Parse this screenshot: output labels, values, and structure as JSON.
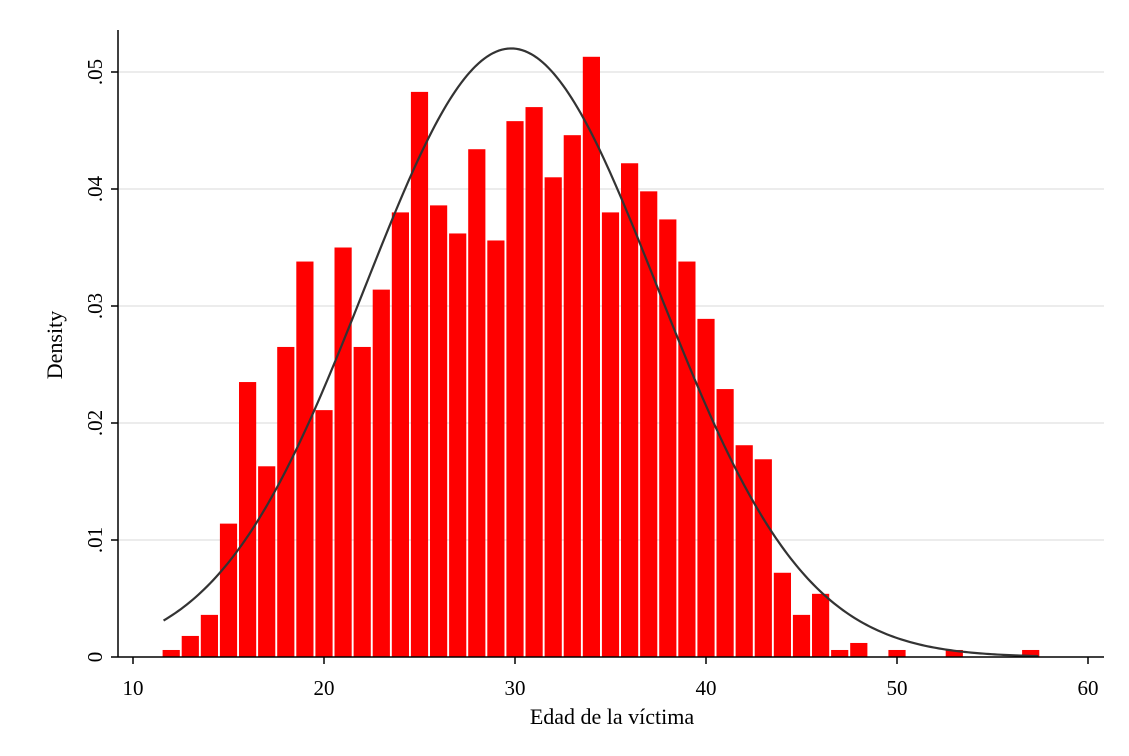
{
  "chart_data": {
    "type": "bar",
    "subtype": "histogram-with-normal-density-overlay",
    "xlabel": "Edad de la víctima",
    "ylabel": "Density",
    "xlim": [
      10,
      60
    ],
    "ylim": [
      0,
      0.053
    ],
    "xticks": [
      10,
      20,
      30,
      40,
      50,
      60
    ],
    "xtick_labels": [
      "10",
      "20",
      "30",
      "40",
      "50",
      "60"
    ],
    "yticks": [
      0,
      0.01,
      0.02,
      0.03,
      0.04,
      0.05
    ],
    "ytick_labels": [
      "0",
      ".01",
      ".02",
      ".03",
      ".04",
      ".05"
    ],
    "grid": "horizontal",
    "bar_color": "#ff0000",
    "curve_color": "#333333",
    "bin_width": 0.9,
    "bins": [
      {
        "x": 12.0,
        "density": 0.0006
      },
      {
        "x": 13.0,
        "density": 0.0018
      },
      {
        "x": 14.0,
        "density": 0.0036
      },
      {
        "x": 15.0,
        "density": 0.0114
      },
      {
        "x": 16.0,
        "density": 0.0235
      },
      {
        "x": 17.0,
        "density": 0.0163
      },
      {
        "x": 18.0,
        "density": 0.0265
      },
      {
        "x": 19.0,
        "density": 0.0338
      },
      {
        "x": 20.0,
        "density": 0.0211
      },
      {
        "x": 21.0,
        "density": 0.035
      },
      {
        "x": 22.0,
        "density": 0.0265
      },
      {
        "x": 23.0,
        "density": 0.0314
      },
      {
        "x": 24.0,
        "density": 0.038
      },
      {
        "x": 25.0,
        "density": 0.0483
      },
      {
        "x": 26.0,
        "density": 0.0386
      },
      {
        "x": 27.0,
        "density": 0.0362
      },
      {
        "x": 28.0,
        "density": 0.0434
      },
      {
        "x": 29.0,
        "density": 0.0356
      },
      {
        "x": 30.0,
        "density": 0.0458
      },
      {
        "x": 31.0,
        "density": 0.047
      },
      {
        "x": 32.0,
        "density": 0.041
      },
      {
        "x": 33.0,
        "density": 0.0446
      },
      {
        "x": 34.0,
        "density": 0.0513
      },
      {
        "x": 35.0,
        "density": 0.038
      },
      {
        "x": 36.0,
        "density": 0.0422
      },
      {
        "x": 37.0,
        "density": 0.0398
      },
      {
        "x": 38.0,
        "density": 0.0374
      },
      {
        "x": 39.0,
        "density": 0.0338
      },
      {
        "x": 40.0,
        "density": 0.0289
      },
      {
        "x": 41.0,
        "density": 0.0229
      },
      {
        "x": 42.0,
        "density": 0.0181
      },
      {
        "x": 43.0,
        "density": 0.0169
      },
      {
        "x": 44.0,
        "density": 0.0072
      },
      {
        "x": 45.0,
        "density": 0.0036
      },
      {
        "x": 46.0,
        "density": 0.0054
      },
      {
        "x": 47.0,
        "density": 0.0006
      },
      {
        "x": 48.0,
        "density": 0.0012
      },
      {
        "x": 50.0,
        "density": 0.0006
      },
      {
        "x": 53.0,
        "density": 0.0006
      },
      {
        "x": 57.0,
        "density": 0.0006
      }
    ],
    "normal_curve": {
      "mean": 29.8,
      "sd": 7.67,
      "x_start": 11.6,
      "x_end": 57.4
    }
  }
}
